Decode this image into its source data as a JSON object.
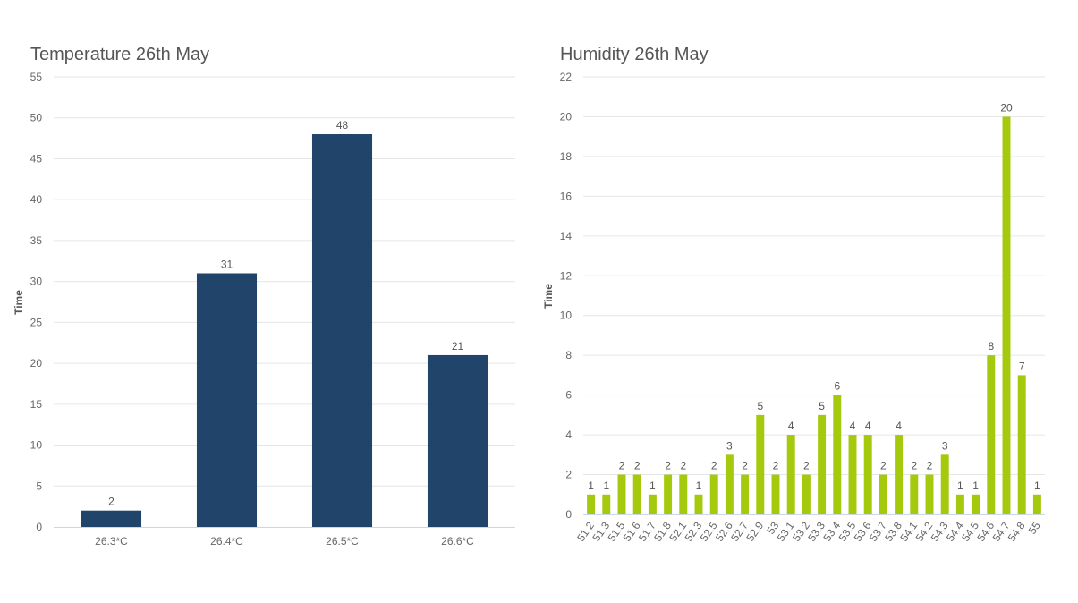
{
  "chart_data": [
    {
      "type": "bar",
      "title": "Temperature 26th May",
      "ylabel": "Time",
      "xlabel": "",
      "categories": [
        "26.3*C",
        "26.4*C",
        "26.5*C",
        "26.6*C"
      ],
      "values": [
        2,
        31,
        48,
        21
      ],
      "ylim": [
        0,
        55
      ],
      "yticks": [
        0,
        5,
        10,
        15,
        20,
        25,
        30,
        35,
        40,
        45,
        50,
        55
      ],
      "color": "#21446b",
      "grid": true,
      "data_labels": true
    },
    {
      "type": "bar",
      "title": "Humidity 26th May",
      "ylabel": "Time",
      "xlabel": "",
      "categories": [
        "51.2",
        "51.3",
        "51.5",
        "51.6",
        "51.7",
        "51.8",
        "52.1",
        "52.3",
        "52.5",
        "52.6",
        "52.7",
        "52.9",
        "53",
        "53.1",
        "53.2",
        "53.3",
        "53.4",
        "53.5",
        "53.6",
        "53.7",
        "53.8",
        "54.1",
        "54.2",
        "54.3",
        "54.4",
        "54.5",
        "54.6",
        "54.7",
        "54.8",
        "55"
      ],
      "values": [
        1,
        1,
        2,
        2,
        1,
        2,
        2,
        1,
        2,
        3,
        2,
        5,
        2,
        4,
        2,
        5,
        6,
        4,
        4,
        2,
        4,
        2,
        2,
        3,
        1,
        1,
        8,
        20,
        7,
        1
      ],
      "ylim": [
        0,
        22
      ],
      "yticks": [
        0,
        2,
        4,
        6,
        8,
        10,
        12,
        14,
        16,
        18,
        20,
        22
      ],
      "color": "#a4c90d",
      "grid": true,
      "data_labels": true
    }
  ]
}
